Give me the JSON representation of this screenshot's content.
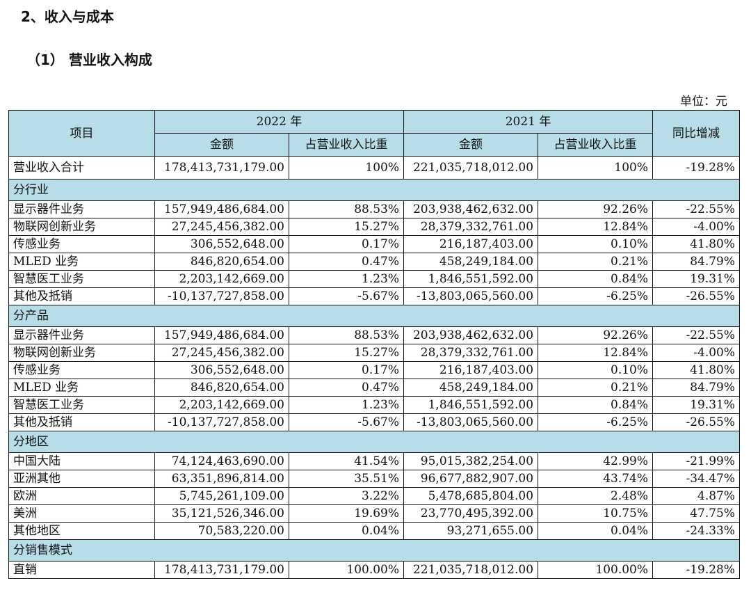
{
  "heading": "2、收入与成本",
  "subheading": "（1） 营业收入构成",
  "unit": "单位：元",
  "table": {
    "header": {
      "item": "项目",
      "year_2022": "2022 年",
      "year_2021": "2021 年",
      "yoy": "同比增减",
      "amount": "金额",
      "share": "占营业收入比重"
    },
    "total": [
      "营业收入合计",
      "178,413,731,179.00",
      "100%",
      "221,035,718,012.00",
      "100%",
      "-19.28%"
    ],
    "sections": [
      {
        "title": "分行业",
        "rows": [
          [
            "显示器件业务",
            "157,949,486,684.00",
            "88.53%",
            "203,938,462,632.00",
            "92.26%",
            "-22.55%"
          ],
          [
            "物联网创新业务",
            "27,245,456,382.00",
            "15.27%",
            "28,379,332,761.00",
            "12.84%",
            "-4.00%"
          ],
          [
            "传感业务",
            "306,552,648.00",
            "0.17%",
            "216,187,403.00",
            "0.10%",
            "41.80%"
          ],
          [
            "MLED 业务",
            "846,820,654.00",
            "0.47%",
            "458,249,184.00",
            "0.21%",
            "84.79%"
          ],
          [
            "智慧医工业务",
            "2,203,142,669.00",
            "1.23%",
            "1,846,551,592.00",
            "0.84%",
            "19.31%"
          ],
          [
            "其他及抵销",
            "-10,137,727,858.00",
            "-5.67%",
            "-13,803,065,560.00",
            "-6.25%",
            "-26.55%"
          ]
        ]
      },
      {
        "title": "分产品",
        "rows": [
          [
            "显示器件业务",
            "157,949,486,684.00",
            "88.53%",
            "203,938,462,632.00",
            "92.26%",
            "-22.55%"
          ],
          [
            "物联网创新业务",
            "27,245,456,382.00",
            "15.27%",
            "28,379,332,761.00",
            "12.84%",
            "-4.00%"
          ],
          [
            "传感业务",
            "306,552,648.00",
            "0.17%",
            "216,187,403.00",
            "0.10%",
            "41.80%"
          ],
          [
            "MLED 业务",
            "846,820,654.00",
            "0.47%",
            "458,249,184.00",
            "0.21%",
            "84.79%"
          ],
          [
            "智慧医工业务",
            "2,203,142,669.00",
            "1.23%",
            "1,846,551,592.00",
            "0.84%",
            "19.31%"
          ],
          [
            "其他及抵销",
            "-10,137,727,858.00",
            "-5.67%",
            "-13,803,065,560.00",
            "-6.25%",
            "-26.55%"
          ]
        ]
      },
      {
        "title": "分地区",
        "rows": [
          [
            "中国大陆",
            "74,124,463,690.00",
            "41.54%",
            "95,015,382,254.00",
            "42.99%",
            "-21.99%"
          ],
          [
            "亚洲其他",
            "63,351,896,814.00",
            "35.51%",
            "96,677,882,907.00",
            "43.74%",
            "-34.47%"
          ],
          [
            "欧洲",
            "5,745,261,109.00",
            "3.22%",
            "5,478,685,804.00",
            "2.48%",
            "4.87%"
          ],
          [
            "美洲",
            "35,121,526,346.00",
            "19.69%",
            "23,770,495,392.00",
            "10.75%",
            "47.75%"
          ],
          [
            "其他地区",
            "70,583,220.00",
            "0.04%",
            "93,271,655.00",
            "0.04%",
            "-24.33%"
          ]
        ]
      },
      {
        "title": "分销售模式",
        "rows": [
          [
            "直销",
            "178,413,731,179.00",
            "100.00%",
            "221,035,718,012.00",
            "100.00%",
            "-19.28%"
          ]
        ]
      }
    ]
  }
}
